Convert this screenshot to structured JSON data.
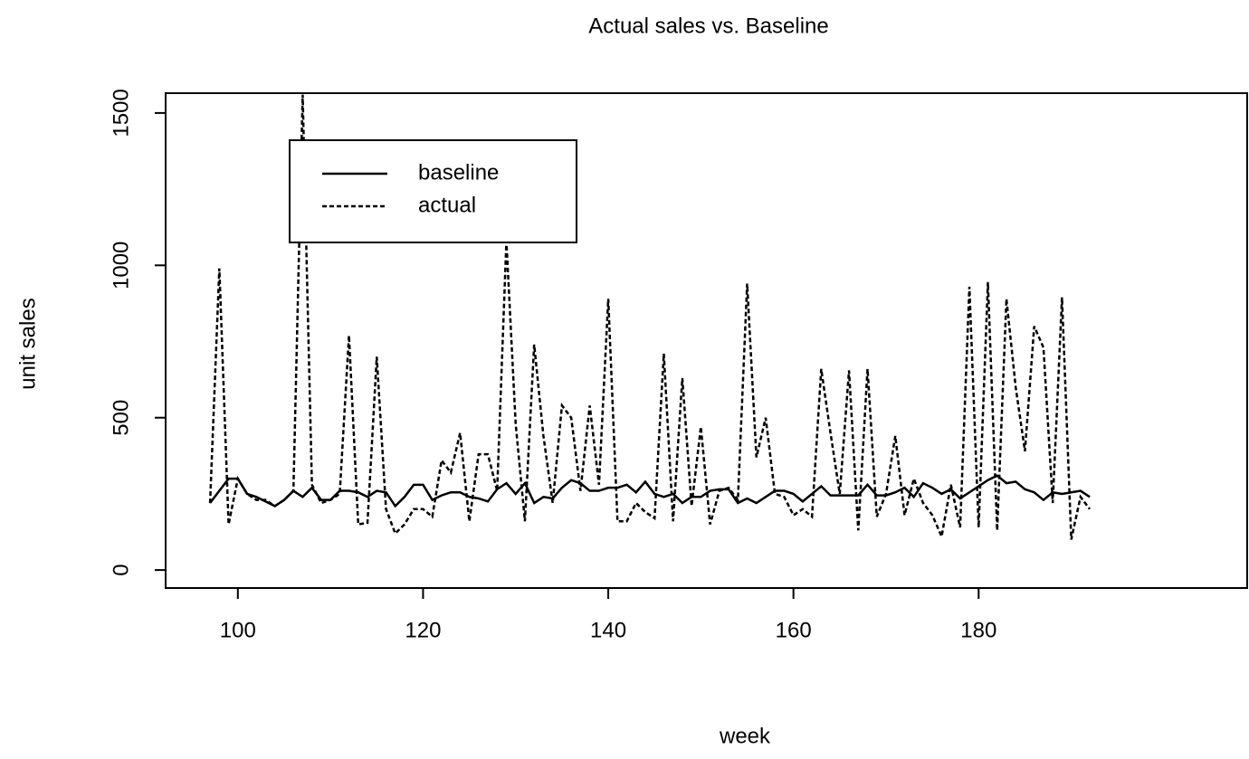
{
  "chart_data": {
    "type": "line",
    "title": "Actual sales vs. Baseline",
    "x_label": "week",
    "y_label": "unit sales",
    "x": [
      97,
      98,
      99,
      100,
      101,
      102,
      103,
      104,
      105,
      106,
      107,
      108,
      109,
      110,
      111,
      112,
      113,
      114,
      115,
      116,
      117,
      118,
      119,
      120,
      121,
      122,
      123,
      124,
      125,
      126,
      127,
      128,
      129,
      130,
      131,
      132,
      133,
      134,
      135,
      136,
      137,
      138,
      139,
      140,
      141,
      142,
      143,
      144,
      145,
      146,
      147,
      148,
      149,
      150,
      151,
      152,
      153,
      154,
      155,
      156,
      157,
      158,
      159,
      160,
      161,
      162,
      163,
      164,
      165,
      166,
      167,
      168,
      169,
      170,
      171,
      172,
      173,
      174,
      175,
      176,
      177,
      178,
      179,
      180,
      181,
      182,
      183,
      184,
      185,
      186,
      187,
      188,
      189,
      190,
      191,
      192
    ],
    "series": [
      {
        "name": "baseline",
        "color": "#000000",
        "dash": "solid",
        "values": [
          220,
          260,
          300,
          300,
          250,
          240,
          225,
          210,
          230,
          260,
          240,
          270,
          230,
          230,
          260,
          260,
          255,
          240,
          260,
          255,
          210,
          240,
          280,
          280,
          230,
          245,
          255,
          255,
          240,
          235,
          225,
          265,
          285,
          250,
          285,
          220,
          240,
          235,
          270,
          295,
          285,
          260,
          260,
          270,
          270,
          280,
          255,
          290,
          250,
          240,
          250,
          220,
          240,
          240,
          260,
          265,
          265,
          220,
          235,
          220,
          240,
          260,
          260,
          250,
          225,
          250,
          275,
          245,
          245,
          245,
          245,
          280,
          245,
          245,
          255,
          270,
          240,
          285,
          270,
          250,
          265,
          235,
          255,
          275,
          295,
          310,
          285,
          290,
          265,
          255,
          230,
          255,
          250,
          255,
          260,
          240
        ]
      },
      {
        "name": "actual",
        "color": "#000000",
        "dash": "dashed",
        "values": [
          220,
          990,
          150,
          300,
          250,
          230,
          230,
          210,
          230,
          260,
          1560,
          280,
          220,
          230,
          250,
          770,
          150,
          155,
          700,
          200,
          120,
          150,
          200,
          200,
          175,
          360,
          320,
          450,
          160,
          380,
          380,
          260,
          1080,
          480,
          160,
          740,
          440,
          220,
          540,
          500,
          260,
          540,
          280,
          890,
          160,
          160,
          220,
          190,
          170,
          710,
          160,
          630,
          210,
          470,
          150,
          260,
          270,
          230,
          940,
          370,
          500,
          250,
          240,
          180,
          200,
          175,
          660,
          450,
          250,
          655,
          130,
          660,
          175,
          250,
          440,
          180,
          300,
          220,
          180,
          110,
          280,
          140,
          930,
          140,
          945,
          130,
          890,
          600,
          390,
          800,
          730,
          220,
          895,
          100,
          240,
          200
        ]
      }
    ],
    "xlim": [
      92.2,
      209
    ],
    "ylim": [
      -59,
      1565
    ],
    "xticks": [
      100,
      120,
      140,
      160,
      180
    ],
    "yticks": [
      0,
      500,
      1000,
      1500
    ],
    "legend": "top-left"
  }
}
